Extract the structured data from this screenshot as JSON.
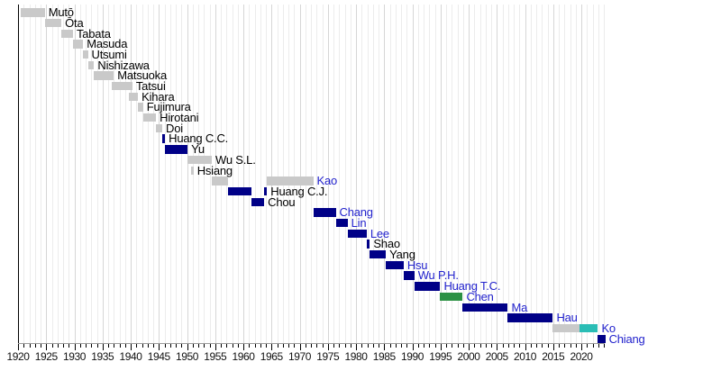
{
  "colors": {
    "gray": "#c9c9c9",
    "navy": "#000087",
    "green": "#2c9144",
    "teal": "#2abdb5",
    "link": "#2323cd",
    "text": "#000000"
  },
  "chart_data": {
    "type": "timeline",
    "title": "",
    "x_axis": {
      "start_year": 1920,
      "end_year": 2024.5,
      "minor_tick_interval": 1,
      "major_tick_interval": 5,
      "tick_labels": [
        1920,
        1925,
        1930,
        1935,
        1940,
        1945,
        1950,
        1955,
        1960,
        1965,
        1970,
        1975,
        1980,
        1985,
        1990,
        1995,
        2000,
        2005,
        2010,
        2015,
        2020
      ],
      "grid": "on"
    },
    "legend": null,
    "rows": [
      {
        "name": "Mutō",
        "link": false,
        "segments": [
          {
            "start": 1920.4,
            "end": 1924.75,
            "color": "gray"
          }
        ]
      },
      {
        "name": "Ōta",
        "link": false,
        "segments": [
          {
            "start": 1924.75,
            "end": 1927.7,
            "color": "gray"
          }
        ]
      },
      {
        "name": "Tabata",
        "link": false,
        "segments": [
          {
            "start": 1927.7,
            "end": 1929.75,
            "color": "gray"
          }
        ]
      },
      {
        "name": "Masuda",
        "link": false,
        "segments": [
          {
            "start": 1929.75,
            "end": 1931.55,
            "color": "gray"
          }
        ]
      },
      {
        "name": "Utsumi",
        "link": false,
        "segments": [
          {
            "start": 1931.55,
            "end": 1932.4,
            "color": "gray"
          }
        ]
      },
      {
        "name": "Nishizawa",
        "link": false,
        "segments": [
          {
            "start": 1932.4,
            "end": 1933.5,
            "color": "gray"
          }
        ]
      },
      {
        "name": "Matsuoka",
        "link": false,
        "segments": [
          {
            "start": 1933.5,
            "end": 1937.0,
            "color": "gray"
          }
        ]
      },
      {
        "name": "Tatsui",
        "link": false,
        "segments": [
          {
            "start": 1936.7,
            "end": 1940.3,
            "color": "gray"
          }
        ]
      },
      {
        "name": "Kihara",
        "link": false,
        "segments": [
          {
            "start": 1939.7,
            "end": 1941.3,
            "color": "gray"
          }
        ]
      },
      {
        "name": "Fujimura",
        "link": false,
        "segments": [
          {
            "start": 1941.3,
            "end": 1942.2,
            "color": "gray"
          }
        ]
      },
      {
        "name": "Hirotani",
        "link": false,
        "segments": [
          {
            "start": 1942.2,
            "end": 1944.5,
            "color": "gray"
          }
        ]
      },
      {
        "name": "Doi",
        "link": false,
        "segments": [
          {
            "start": 1944.5,
            "end": 1945.6,
            "color": "gray"
          }
        ]
      },
      {
        "name": "Huang C.C.",
        "link": false,
        "segments": [
          {
            "start": 1945.6,
            "end": 1946.1,
            "color": "navy"
          }
        ]
      },
      {
        "name": "Yu",
        "link": false,
        "segments": [
          {
            "start": 1946.1,
            "end": 1950.1,
            "color": "navy"
          }
        ]
      },
      {
        "name": "Wu S.L.",
        "link": false,
        "segments": [
          {
            "start": 1950.1,
            "end": 1954.4,
            "color": "gray"
          }
        ]
      },
      {
        "name": "Hsiang",
        "link": false,
        "segments": [
          {
            "start": 1950.75,
            "end": 1951.15,
            "color": "gray"
          }
        ]
      },
      {
        "name": "Kao",
        "link": true,
        "segments": [
          {
            "start": 1954.4,
            "end": 1957.2,
            "color": "gray"
          },
          {
            "start": 1964.2,
            "end": 1972.4,
            "color": "gray"
          }
        ]
      },
      {
        "name": "Huang C.J.",
        "link": false,
        "segments": [
          {
            "start": 1957.3,
            "end": 1961.5,
            "color": "navy"
          },
          {
            "start": 1963.7,
            "end": 1964.2,
            "color": "navy"
          }
        ]
      },
      {
        "name": "Chou",
        "link": false,
        "segments": [
          {
            "start": 1961.5,
            "end": 1963.7,
            "color": "navy"
          }
        ]
      },
      {
        "name": "Chang",
        "link": true,
        "segments": [
          {
            "start": 1972.4,
            "end": 1976.4,
            "color": "navy"
          }
        ]
      },
      {
        "name": "Lin",
        "link": true,
        "segments": [
          {
            "start": 1976.4,
            "end": 1978.5,
            "color": "navy"
          }
        ]
      },
      {
        "name": "Lee",
        "link": true,
        "segments": [
          {
            "start": 1978.5,
            "end": 1981.9,
            "color": "navy"
          }
        ]
      },
      {
        "name": "Shao",
        "link": false,
        "segments": [
          {
            "start": 1981.9,
            "end": 1982.45,
            "color": "navy"
          }
        ]
      },
      {
        "name": "Yang",
        "link": false,
        "segments": [
          {
            "start": 1982.45,
            "end": 1985.3,
            "color": "navy"
          }
        ]
      },
      {
        "name": "Hsu",
        "link": true,
        "segments": [
          {
            "start": 1985.3,
            "end": 1988.45,
            "color": "navy"
          }
        ]
      },
      {
        "name": "Wu P.H.",
        "link": true,
        "segments": [
          {
            "start": 1988.45,
            "end": 1990.35,
            "color": "navy"
          }
        ]
      },
      {
        "name": "Huang T.C.",
        "link": true,
        "segments": [
          {
            "start": 1990.35,
            "end": 1994.95,
            "color": "navy"
          }
        ]
      },
      {
        "name": "Chen",
        "link": true,
        "segments": [
          {
            "start": 1994.95,
            "end": 1998.95,
            "color": "green"
          }
        ]
      },
      {
        "name": "Ma",
        "link": true,
        "segments": [
          {
            "start": 1998.95,
            "end": 2006.95,
            "color": "navy"
          }
        ]
      },
      {
        "name": "Hau",
        "link": true,
        "segments": [
          {
            "start": 2006.95,
            "end": 2014.95,
            "color": "navy"
          }
        ]
      },
      {
        "name": "Ko",
        "link": true,
        "segments": [
          {
            "start": 2014.95,
            "end": 2019.6,
            "color": "gray"
          },
          {
            "start": 2019.6,
            "end": 2022.95,
            "color": "teal"
          }
        ]
      },
      {
        "name": "Chiang",
        "link": true,
        "segments": [
          {
            "start": 2022.95,
            "end": 2024.25,
            "color": "navy"
          }
        ]
      }
    ]
  }
}
